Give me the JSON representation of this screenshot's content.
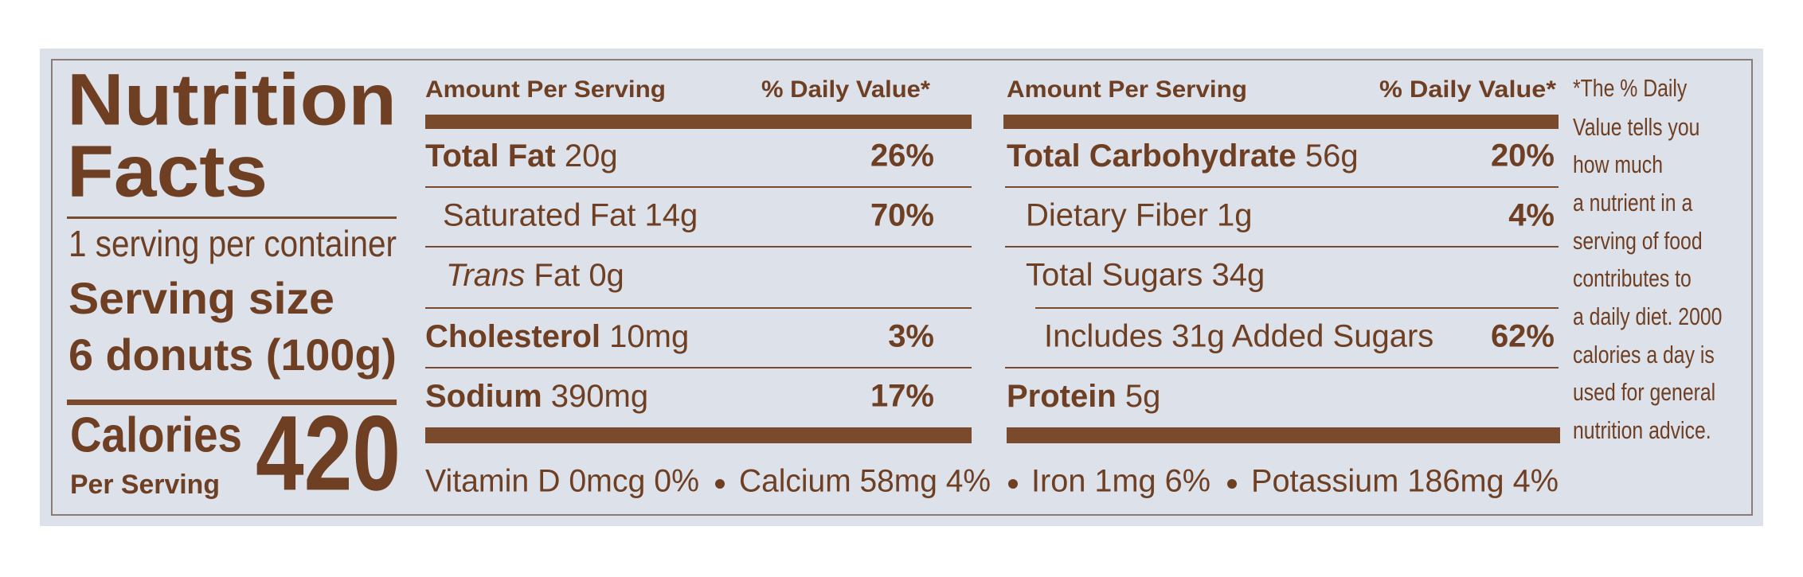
{
  "title": [
    "Nutrition",
    "Facts"
  ],
  "servings_per_container": "1 serving per container",
  "serving_size_label": "Serving size",
  "serving_size": "6 donuts (100g)",
  "calories_label": "Calories",
  "calories_sub": "Per Serving",
  "calories": 420,
  "left_header": {
    "amount": "Amount Per Serving",
    "dv": "% Daily Value*"
  },
  "right_header": {
    "amount": "Amount Per Serving",
    "dv": "% Daily Value*"
  },
  "left_rows": [
    {
      "name": "Total Fat",
      "amount": "20g",
      "dv": "26%"
    },
    {
      "name": "Saturated Fat 14g",
      "dv": "70%"
    },
    {
      "italic": "Trans",
      "name": "Fat 0g"
    },
    {
      "name": "Cholesterol",
      "amount": "10mg",
      "dv": "3%"
    },
    {
      "name": "Sodium",
      "amount": "390mg",
      "dv": "17%"
    }
  ],
  "right_rows": [
    {
      "name": "Total Carbohydrate",
      "amount": "56g",
      "dv": "20%"
    },
    {
      "name": "Dietary Fiber 1g",
      "dv": "4%"
    },
    {
      "name": "Total Sugars 34g"
    },
    {
      "name": "Includes 31g Added Sugars",
      "dv": "62%"
    },
    {
      "name": "Protein",
      "amount": "5g"
    }
  ],
  "vitamins": [
    "Vitamin D 0mcg 0%",
    "Calcium 58mg 4%",
    "Iron 1mg 6%",
    "Potassium 186mg 4%"
  ],
  "footnote": [
    "*The % Daily",
    "Value tells you",
    "how much",
    "a nutrient in a",
    "serving of food",
    "contributes to",
    "a daily diet. 2000",
    "calories a day is",
    "used  for general",
    "nutrition advice."
  ]
}
